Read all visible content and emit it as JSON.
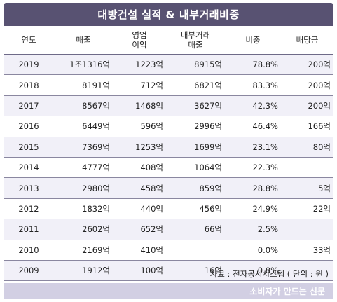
{
  "title": "대방건설 실적 & 내부거래비중",
  "table": {
    "headers": [
      {
        "l1": "연도",
        "l2": ""
      },
      {
        "l1": "매출",
        "l2": ""
      },
      {
        "l1": "영업",
        "l2": "이익"
      },
      {
        "l1": "내부거래",
        "l2": "매출"
      },
      {
        "l1": "비중",
        "l2": ""
      },
      {
        "l1": "배당금",
        "l2": ""
      }
    ],
    "rows": [
      [
        "2019",
        "1조1316억",
        "1223억",
        "8915억",
        "78.8%",
        "200억"
      ],
      [
        "2018",
        "8191억",
        "712억",
        "6821억",
        "83.3%",
        "200억"
      ],
      [
        "2017",
        "8567억",
        "1468억",
        "3627억",
        "42.3%",
        "200억"
      ],
      [
        "2016",
        "6449억",
        "596억",
        "2996억",
        "46.4%",
        "166억"
      ],
      [
        "2015",
        "7369억",
        "1253억",
        "1699억",
        "23.1%",
        "80억"
      ],
      [
        "2014",
        "4777억",
        "408억",
        "1064억",
        "22.3%",
        ""
      ],
      [
        "2013",
        "2980억",
        "458억",
        "859억",
        "28.8%",
        "5억"
      ],
      [
        "2012",
        "1832억",
        "440억",
        "456억",
        "24.9%",
        "22억"
      ],
      [
        "2011",
        "2602억",
        "652억",
        "66억",
        "2.5%",
        ""
      ],
      [
        "2010",
        "2169억",
        "410억",
        "",
        "0.0%",
        "33억"
      ],
      [
        "2009",
        "1912억",
        "100억",
        "16억",
        "0.8%",
        ""
      ]
    ]
  },
  "source": "자료 : 전자공시시스템 ( 단위 : 원 )",
  "footer": "소비자가 만드는 신문",
  "colors": {
    "title_bg": "#585272",
    "row_alt_bg": "#f1f0f8",
    "footer_bg": "#d2cfe3"
  }
}
